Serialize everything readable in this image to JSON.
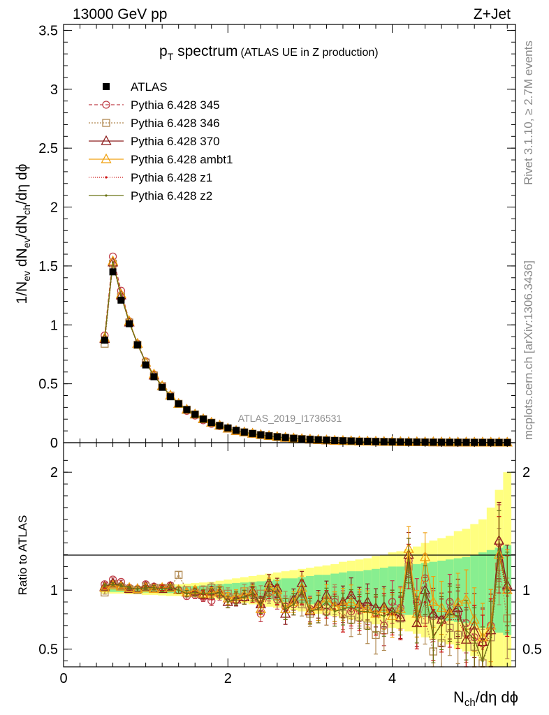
{
  "header": {
    "left": "13000 GeV pp",
    "right": "Z+Jet"
  },
  "title": {
    "main_pt": "p",
    "main_sub": "T",
    "main_rest": " spectrum",
    "small": "(ATLAS UE in Z production)"
  },
  "side_labels": {
    "rivet": "Rivet 3.1.10, ≥ 2.7M events",
    "mcplots": "mcplots.cern.ch [arXiv:1306.3436]"
  },
  "watermark": "ATLAS_2019_I1736531",
  "ratio_label": "Ratio to ATLAS",
  "xlabel": {
    "n": "N",
    "sub": "ch",
    "rest": "/dη dϕ"
  },
  "ylabel": {
    "p1": "1/N",
    "s1": "ev",
    "p2": " dN",
    "s2": "ev",
    "p3": "/dN",
    "s3": "ch",
    "p4": "/dη dϕ"
  },
  "legend": [
    {
      "label": "ATLAS",
      "color": "#000000",
      "marker": "filled-square",
      "dash": ""
    },
    {
      "label": "Pythia 6.428 345",
      "color": "#c0404a",
      "marker": "open-circle",
      "dash": "5,3"
    },
    {
      "label": "Pythia 6.428 346",
      "color": "#b08850",
      "marker": "open-square",
      "dash": "2,2"
    },
    {
      "label": "Pythia 6.428 370",
      "color": "#8b1a1a",
      "marker": "open-triangle",
      "dash": ""
    },
    {
      "label": "Pythia 6.428 ambt1",
      "color": "#f0a010",
      "marker": "open-triangle",
      "dash": ""
    },
    {
      "label": "Pythia 6.428 z1",
      "color": "#cc1010",
      "marker": "dot",
      "dash": "1,2"
    },
    {
      "label": "Pythia 6.428 z2",
      "color": "#6b7314",
      "marker": "dot",
      "dash": ""
    }
  ],
  "chart_data": [
    {
      "type": "line",
      "panel": "main",
      "ylim": [
        0,
        3.55
      ],
      "xlim": [
        0,
        5.5
      ],
      "yticks": [
        "0",
        "0.5",
        "1",
        "1.5",
        "2",
        "2.5",
        "3",
        "3.5"
      ],
      "x": [
        0.5,
        0.6,
        0.7,
        0.8,
        0.9,
        1.0,
        1.1,
        1.2,
        1.3,
        1.4,
        1.5,
        1.6,
        1.7,
        1.8,
        1.9,
        2.0,
        2.1,
        2.2,
        2.3,
        2.4,
        2.5,
        2.6,
        2.7,
        2.8,
        2.9,
        3.0,
        3.1,
        3.2,
        3.3,
        3.4,
        3.5,
        3.6,
        3.7,
        3.8,
        3.9,
        4.0,
        4.1,
        4.2,
        4.3,
        4.4,
        4.5,
        4.6,
        4.7,
        4.8,
        4.9,
        5.0,
        5.1,
        5.2,
        5.3,
        5.4
      ],
      "series": [
        {
          "name": "ATLAS",
          "values": [
            0.87,
            1.45,
            1.21,
            1.01,
            0.83,
            0.66,
            0.56,
            0.47,
            0.39,
            0.33,
            0.28,
            0.24,
            0.2,
            0.17,
            0.145,
            0.125,
            0.105,
            0.09,
            0.078,
            0.067,
            0.058,
            0.05,
            0.043,
            0.037,
            0.032,
            0.028,
            0.024,
            0.021,
            0.018,
            0.016,
            0.014,
            0.012,
            0.011,
            0.0095,
            0.0083,
            0.0072,
            0.0063,
            0.0055,
            0.0048,
            0.0042,
            0.0037,
            0.0033,
            0.0029,
            0.0025,
            0.0022,
            0.002,
            0.0018,
            0.0016,
            0.0014,
            0.0013
          ]
        },
        {
          "name": "Pythia 6.428 345",
          "values": [
            0.91,
            1.58,
            1.29,
            1.03,
            0.84,
            0.69,
            0.58,
            0.48,
            0.4,
            0.33,
            0.27,
            0.23,
            0.19,
            0.16,
            0.14,
            0.12,
            0.1,
            0.087,
            0.075,
            0.064,
            0.056,
            0.048,
            0.041,
            0.036,
            0.031,
            0.027,
            0.023,
            0.02,
            0.017,
            0.015,
            0.013,
            0.011,
            0.01,
            0.0088,
            0.0077,
            0.0067,
            0.0058,
            0.0051,
            0.0045,
            0.0039,
            0.0034,
            0.003,
            0.0026,
            0.0023,
            0.002,
            0.0018,
            0.0016,
            0.0014,
            0.0013,
            0.0011
          ]
        },
        {
          "name": "Pythia 6.428 346",
          "values": [
            0.84,
            1.52,
            1.24,
            1.02,
            0.83,
            0.68,
            0.57,
            0.48,
            0.4,
            0.33,
            0.28,
            0.24,
            0.2,
            0.17,
            0.145,
            0.12,
            0.1,
            0.088,
            0.076,
            0.065,
            0.057,
            0.049,
            0.042,
            0.036,
            0.031,
            0.027,
            0.023,
            0.02,
            0.017,
            0.015,
            0.013,
            0.011,
            0.01,
            0.0087,
            0.0076,
            0.0066,
            0.0058,
            0.005,
            0.0044,
            0.0038,
            0.0033,
            0.0029,
            0.0026,
            0.0022,
            0.002,
            0.0017,
            0.0015,
            0.0014,
            0.0012,
            0.0011
          ]
        },
        {
          "name": "Pythia 6.428 370",
          "values": [
            0.88,
            1.53,
            1.25,
            1.02,
            0.84,
            0.68,
            0.57,
            0.48,
            0.4,
            0.33,
            0.28,
            0.24,
            0.2,
            0.17,
            0.145,
            0.12,
            0.1,
            0.088,
            0.077,
            0.066,
            0.057,
            0.049,
            0.042,
            0.036,
            0.031,
            0.027,
            0.023,
            0.02,
            0.017,
            0.015,
            0.013,
            0.011,
            0.01,
            0.0088,
            0.0077,
            0.0067,
            0.0058,
            0.0051,
            0.0045,
            0.0039,
            0.0034,
            0.003,
            0.0026,
            0.0023,
            0.002,
            0.0018,
            0.0016,
            0.0014,
            0.0013,
            0.0011
          ]
        },
        {
          "name": "Pythia 6.428 ambt1",
          "values": [
            0.89,
            1.54,
            1.26,
            1.03,
            0.84,
            0.68,
            0.58,
            0.48,
            0.4,
            0.33,
            0.28,
            0.24,
            0.2,
            0.17,
            0.145,
            0.12,
            0.1,
            0.088,
            0.077,
            0.066,
            0.057,
            0.049,
            0.042,
            0.036,
            0.031,
            0.027,
            0.023,
            0.02,
            0.017,
            0.015,
            0.013,
            0.011,
            0.01,
            0.0088,
            0.0077,
            0.0067,
            0.0058,
            0.0051,
            0.0045,
            0.0039,
            0.0034,
            0.003,
            0.0026,
            0.0023,
            0.002,
            0.0018,
            0.0016,
            0.0014,
            0.0013,
            0.0011
          ]
        },
        {
          "name": "Pythia 6.428 z1",
          "values": [
            0.88,
            1.53,
            1.25,
            1.02,
            0.84,
            0.68,
            0.57,
            0.48,
            0.4,
            0.33,
            0.28,
            0.24,
            0.2,
            0.17,
            0.145,
            0.12,
            0.1,
            0.088,
            0.076,
            0.065,
            0.056,
            0.048,
            0.041,
            0.036,
            0.031,
            0.027,
            0.023,
            0.02,
            0.017,
            0.015,
            0.013,
            0.011,
            0.0098,
            0.0086,
            0.0075,
            0.0065,
            0.0057,
            0.005,
            0.0044,
            0.0038,
            0.0033,
            0.0029,
            0.0026,
            0.0022,
            0.002,
            0.0017,
            0.0015,
            0.0014,
            0.0012,
            0.0011
          ]
        },
        {
          "name": "Pythia 6.428 z2",
          "values": [
            0.88,
            1.53,
            1.25,
            1.02,
            0.84,
            0.68,
            0.57,
            0.48,
            0.4,
            0.33,
            0.28,
            0.24,
            0.2,
            0.17,
            0.145,
            0.12,
            0.1,
            0.088,
            0.076,
            0.065,
            0.056,
            0.048,
            0.041,
            0.036,
            0.031,
            0.027,
            0.023,
            0.02,
            0.017,
            0.015,
            0.013,
            0.011,
            0.0098,
            0.0086,
            0.0075,
            0.0065,
            0.0057,
            0.005,
            0.0044,
            0.0038,
            0.0033,
            0.0029,
            0.0026,
            0.0022,
            0.002,
            0.0017,
            0.0015,
            0.0014,
            0.0012,
            0.0011
          ]
        }
      ]
    },
    {
      "type": "line",
      "panel": "ratio",
      "ylabel": "Ratio to ATLAS",
      "xlabel": "Nch/dη dϕ",
      "ylim": [
        0.35,
        2.25
      ],
      "xlim": [
        0,
        5.5
      ],
      "xticks": [
        "0",
        "2",
        "4"
      ],
      "yticks": [
        "0.5",
        "1",
        "2"
      ],
      "x": [
        0.5,
        0.6,
        0.7,
        0.8,
        0.9,
        1.0,
        1.1,
        1.2,
        1.3,
        1.4,
        1.5,
        1.6,
        1.7,
        1.8,
        1.9,
        2.0,
        2.1,
        2.2,
        2.3,
        2.4,
        2.5,
        2.6,
        2.7,
        2.8,
        2.9,
        3.0,
        3.1,
        3.2,
        3.3,
        3.4,
        3.5,
        3.6,
        3.7,
        3.8,
        3.9,
        4.0,
        4.1,
        4.2,
        4.3,
        4.4,
        4.5,
        4.6,
        4.7,
        4.8,
        4.9,
        5.0,
        5.1,
        5.2,
        5.3,
        5.4
      ],
      "band_stat": [
        0.015,
        0.015,
        0.015,
        0.015,
        0.02,
        0.02,
        0.02,
        0.025,
        0.025,
        0.03,
        0.03,
        0.035,
        0.04,
        0.045,
        0.05,
        0.055,
        0.06,
        0.065,
        0.07,
        0.075,
        0.08,
        0.09,
        0.1,
        0.1,
        0.11,
        0.12,
        0.13,
        0.13,
        0.14,
        0.15,
        0.16,
        0.16,
        0.17,
        0.18,
        0.19,
        0.2,
        0.2,
        0.21,
        0.22,
        0.23,
        0.24,
        0.25,
        0.26,
        0.27,
        0.28,
        0.3,
        0.32,
        0.34,
        0.36,
        0.38
      ],
      "band_total": [
        0.03,
        0.03,
        0.03,
        0.035,
        0.035,
        0.04,
        0.04,
        0.045,
        0.05,
        0.05,
        0.055,
        0.06,
        0.065,
        0.07,
        0.08,
        0.09,
        0.1,
        0.11,
        0.12,
        0.13,
        0.14,
        0.15,
        0.16,
        0.17,
        0.18,
        0.19,
        0.2,
        0.21,
        0.22,
        0.24,
        0.25,
        0.26,
        0.27,
        0.29,
        0.3,
        0.32,
        0.33,
        0.35,
        0.37,
        0.4,
        0.42,
        0.44,
        0.46,
        0.5,
        0.52,
        0.56,
        0.6,
        0.7,
        0.85,
        1.0
      ],
      "series": [
        {
          "name": "Pythia 6.428 345",
          "values": [
            1.05,
            1.09,
            1.07,
            1.02,
            1.01,
            1.05,
            1.03,
            1.02,
            1.04,
            1.0,
            0.95,
            0.96,
            0.94,
            0.91,
            0.96,
            0.95,
            0.92,
            0.94,
            0.97,
            0.8,
            0.98,
            0.92,
            0.86,
            0.88,
            0.97,
            0.84,
            0.86,
            0.82,
            0.9,
            0.86,
            0.82,
            0.84,
            0.86,
            0.8,
            0.7,
            0.9,
            0.85,
            1.25,
            0.9,
            1.1,
            0.78,
            0.75,
            0.9,
            0.8,
            0.72,
            0.6,
            0.55,
            0.7,
            1.4,
            1.0
          ]
        },
        {
          "name": "Pythia 6.428 346",
          "values": [
            0.98,
            1.05,
            1.03,
            1.01,
            1.0,
            1.03,
            1.02,
            1.02,
            1.02,
            1.13,
            1.0,
            0.98,
            1.0,
            1.02,
            1.0,
            0.97,
            0.94,
            0.99,
            1.0,
            0.97,
            0.96,
            0.95,
            0.9,
            0.92,
            0.88,
            0.8,
            0.86,
            0.82,
            0.92,
            0.8,
            0.75,
            0.77,
            0.7,
            0.62,
            0.66,
            0.82,
            0.76,
            1.2,
            0.8,
            0.75,
            0.48,
            0.55,
            0.68,
            0.62,
            0.64,
            0.52,
            0.38,
            0.6,
            1.2,
            0.76
          ]
        },
        {
          "name": "Pythia 6.428 370",
          "values": [
            1.03,
            1.06,
            1.04,
            1.01,
            1.01,
            1.03,
            1.02,
            1.01,
            1.03,
            1.0,
            0.98,
            0.99,
            0.96,
            0.99,
            0.98,
            0.9,
            0.92,
            0.94,
            0.99,
            0.88,
            1.06,
            1.02,
            0.8,
            0.92,
            1.06,
            0.82,
            0.88,
            0.96,
            0.86,
            0.9,
            0.96,
            0.88,
            0.9,
            0.85,
            0.86,
            0.82,
            0.77,
            1.3,
            0.72,
            1.0,
            0.8,
            0.75,
            0.82,
            0.85,
            0.58,
            0.7,
            0.56,
            0.66,
            1.42,
            1.04
          ]
        },
        {
          "name": "Pythia 6.428 ambt1",
          "values": [
            1.02,
            1.04,
            1.03,
            1.02,
            1.01,
            1.02,
            1.01,
            1.02,
            1.02,
            1.0,
            0.98,
            1.0,
            0.97,
            0.98,
            0.99,
            0.93,
            0.95,
            0.96,
            0.98,
            0.84,
            1.03,
            1.0,
            0.84,
            0.9,
            1.02,
            0.83,
            0.86,
            0.93,
            0.86,
            0.88,
            0.9,
            0.86,
            0.84,
            0.8,
            0.84,
            0.78,
            0.84,
            1.35,
            0.8,
            1.28,
            0.9,
            0.85,
            0.8,
            0.9,
            0.92,
            0.75,
            0.6,
            0.7,
            1.3,
            1.0
          ]
        },
        {
          "name": "Pythia 6.428 z1",
          "values": [
            1.03,
            1.05,
            1.04,
            1.02,
            1.01,
            1.02,
            1.02,
            1.02,
            1.02,
            1.0,
            0.97,
            0.98,
            0.96,
            0.96,
            0.98,
            0.9,
            0.93,
            0.94,
            0.96,
            0.86,
            1.0,
            0.96,
            0.84,
            0.88,
            0.98,
            0.82,
            0.84,
            0.88,
            0.84,
            0.78,
            0.84,
            0.8,
            0.82,
            0.78,
            0.8,
            0.8,
            0.76,
            1.2,
            0.7,
            0.9,
            0.62,
            0.7,
            0.75,
            0.75,
            0.6,
            0.6,
            0.5,
            0.62,
            1.3,
            0.95
          ]
        },
        {
          "name": "Pythia 6.428 z2",
          "values": [
            1.04,
            1.05,
            1.04,
            1.02,
            1.01,
            1.02,
            1.02,
            1.01,
            1.02,
            1.0,
            0.97,
            0.98,
            0.97,
            0.97,
            0.98,
            0.9,
            0.93,
            0.94,
            0.97,
            0.87,
            1.02,
            0.97,
            0.84,
            0.88,
            0.99,
            0.82,
            0.84,
            0.9,
            0.82,
            0.84,
            0.86,
            0.82,
            0.82,
            0.8,
            0.78,
            0.82,
            0.8,
            1.25,
            0.75,
            1.0,
            0.6,
            0.72,
            0.8,
            0.78,
            0.66,
            0.58,
            0.4,
            0.6,
            1.35,
            0.98
          ]
        }
      ]
    }
  ]
}
